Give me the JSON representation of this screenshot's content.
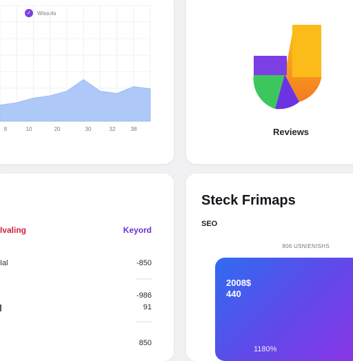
{
  "chart_card": {
    "legend_label": "Wissels"
  },
  "chart_data": {
    "type": "area",
    "x_tick_labels": [
      "8",
      "10",
      "20",
      "30",
      "32",
      "38"
    ],
    "values": [
      14,
      16,
      20,
      22,
      26,
      36,
      26,
      24,
      30,
      28
    ],
    "ylim": [
      0,
      100
    ],
    "grid": true,
    "colors": {
      "fill": "#aec8f7",
      "stroke": "#9dbdf4",
      "grid": "#eef0f4"
    }
  },
  "reviews_card": {
    "title": "Reviews",
    "colors": [
      "#f5b21a",
      "#7b3fe4",
      "#3cc65e",
      "#f47a24"
    ]
  },
  "keyword_card": {
    "left_heading": "Ivaling",
    "right_heading": "Keyord",
    "rows": [
      {
        "label": "Ial",
        "value": "-850"
      },
      {
        "label": "",
        "value": ""
      },
      {
        "label": "",
        "value": "-986"
      },
      {
        "label": "",
        "value": "91"
      },
      {
        "label": "",
        "value": "850"
      }
    ]
  },
  "seo_card": {
    "title": "Steck Frimaps",
    "subtitle": "SEO",
    "note": "806 USNIENISHS",
    "panel_line1": "2008$",
    "panel_line2": "440",
    "panel_small": "1180%"
  }
}
